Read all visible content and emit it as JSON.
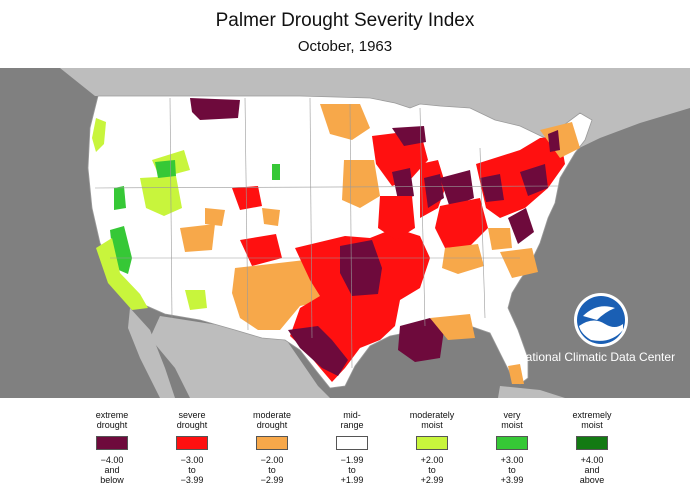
{
  "title": "Palmer Drought Severity Index",
  "subtitle": "October, 1963",
  "credit": "National Climatic Data Center",
  "logo_text": "NOAA",
  "colors": {
    "extreme_drought": "#6e0a3c",
    "severe_drought": "#ff1010",
    "moderate_drought": "#f7a84a",
    "mid_range": "#ffffff",
    "moderately_moist": "#c8f53c",
    "very_moist": "#36c836",
    "extremely_moist": "#137a13",
    "background": "#808080",
    "non_us_land": "#bdbdbd"
  },
  "legend": [
    {
      "label": [
        "extreme",
        "drought"
      ],
      "range": [
        "−4.00",
        "and",
        "below"
      ],
      "color": "#6e0a3c"
    },
    {
      "label": [
        "severe",
        "drought"
      ],
      "range": [
        "−3.00",
        "to",
        "−3.99"
      ],
      "color": "#ff1010"
    },
    {
      "label": [
        "moderate",
        "drought"
      ],
      "range": [
        "−2.00",
        "to",
        "−2.99"
      ],
      "color": "#f7a84a"
    },
    {
      "label": [
        "mid-",
        "range"
      ],
      "range": [
        "−1.99",
        "to",
        "+1.99"
      ],
      "color": "#ffffff"
    },
    {
      "label": [
        "moderately",
        "moist"
      ],
      "range": [
        "+2.00",
        "to",
        "+2.99"
      ],
      "color": "#c8f53c"
    },
    {
      "label": [
        "very",
        "moist"
      ],
      "range": [
        "+3.00",
        "to",
        "+3.99"
      ],
      "color": "#36c836"
    },
    {
      "label": [
        "extremely",
        "moist"
      ],
      "range": [
        "+4.00",
        "and",
        "above"
      ],
      "color": "#137a13"
    }
  ]
}
